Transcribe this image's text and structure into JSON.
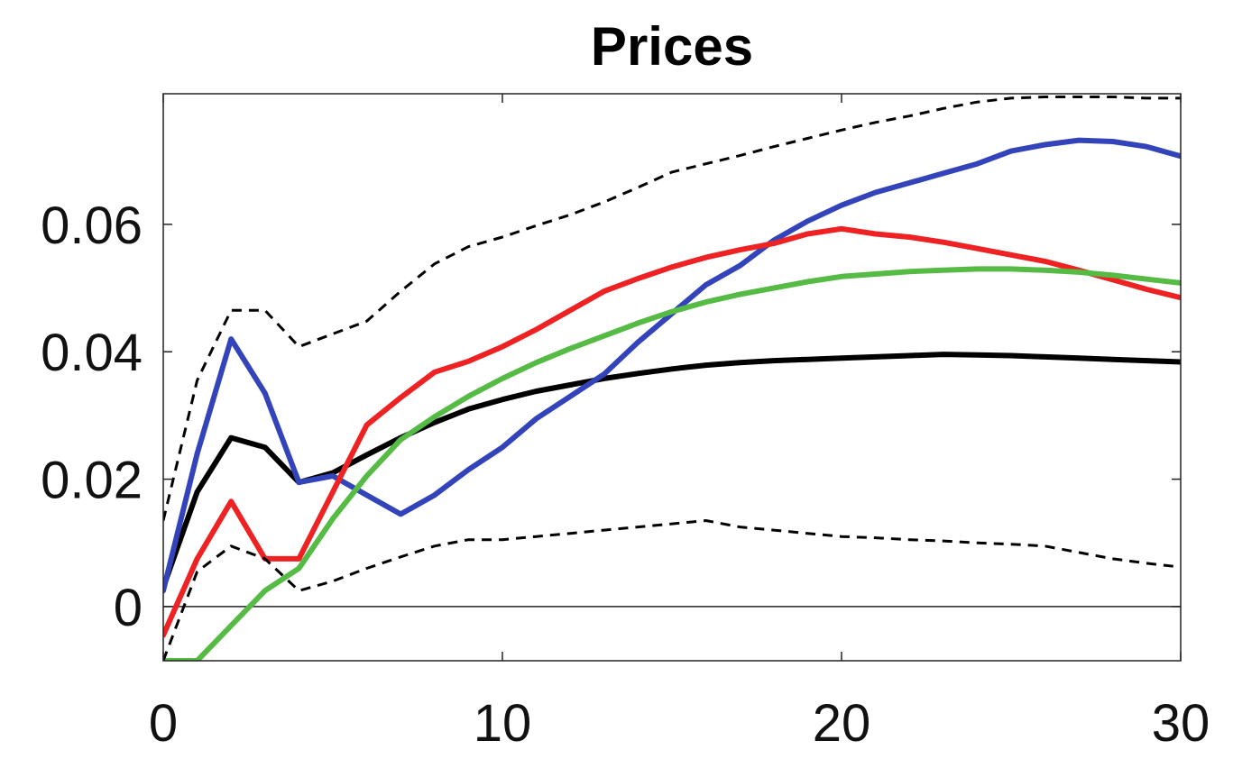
{
  "chart_data": {
    "type": "line",
    "title": "Prices",
    "xlabel": "",
    "ylabel": "",
    "xlim": [
      0,
      30
    ],
    "ylim": [
      -0.0085,
      0.0805
    ],
    "x_ticks": [
      0,
      10,
      20,
      30
    ],
    "x_tick_labels": [
      "0",
      "10",
      "20",
      "30"
    ],
    "y_ticks": [
      0,
      0.02,
      0.04,
      0.06
    ],
    "y_tick_labels": [
      "0",
      "0.02",
      "0.04",
      "0.06"
    ],
    "zero_line": true,
    "grid": false,
    "legend": "none",
    "x": [
      0,
      1,
      2,
      3,
      4,
      5,
      6,
      7,
      8,
      9,
      10,
      11,
      12,
      13,
      14,
      15,
      16,
      17,
      18,
      19,
      20,
      21,
      22,
      23,
      24,
      25,
      26,
      27,
      28,
      29,
      30
    ],
    "series": [
      {
        "color": "#000000",
        "style": "solid",
        "values": [
          0.003,
          0.018,
          0.0265,
          0.025,
          0.0195,
          0.021,
          0.0238,
          0.0265,
          0.0289,
          0.031,
          0.0325,
          0.0338,
          0.0348,
          0.0358,
          0.0366,
          0.0373,
          0.0379,
          0.0383,
          0.0386,
          0.0388,
          0.039,
          0.0392,
          0.0394,
          0.0396,
          0.0395,
          0.0394,
          0.0392,
          0.039,
          0.0388,
          0.0386,
          0.0384
        ]
      },
      {
        "color": "#3344bb",
        "style": "solid",
        "values": [
          0.0025,
          0.024,
          0.042,
          0.0335,
          0.0195,
          0.0205,
          0.0175,
          0.0145,
          0.0175,
          0.0215,
          0.025,
          0.0295,
          0.033,
          0.0365,
          0.0415,
          0.046,
          0.0505,
          0.0535,
          0.0575,
          0.0605,
          0.063,
          0.065,
          0.0665,
          0.068,
          0.0695,
          0.0715,
          0.0725,
          0.0732,
          0.073,
          0.0722,
          0.0707
        ]
      },
      {
        "color": "#ee2222",
        "style": "solid",
        "values": [
          -0.0045,
          0.0075,
          0.0165,
          0.0075,
          0.0075,
          0.018,
          0.0285,
          0.0328,
          0.0368,
          0.0385,
          0.0408,
          0.0435,
          0.0465,
          0.0495,
          0.0515,
          0.0533,
          0.0548,
          0.056,
          0.057,
          0.0585,
          0.0593,
          0.0585,
          0.058,
          0.0572,
          0.0562,
          0.0552,
          0.0542,
          0.0528,
          0.0513,
          0.0498,
          0.0485
        ]
      },
      {
        "color": "#55bb44",
        "style": "solid",
        "values": [
          -0.0085,
          -0.0085,
          -0.003,
          0.0025,
          0.006,
          0.0138,
          0.0205,
          0.0262,
          0.0298,
          0.033,
          0.0358,
          0.0383,
          0.0405,
          0.0425,
          0.0445,
          0.0463,
          0.0478,
          0.049,
          0.05,
          0.051,
          0.0518,
          0.0522,
          0.0526,
          0.0528,
          0.053,
          0.053,
          0.0528,
          0.0525,
          0.052,
          0.0514,
          0.0508
        ]
      },
      {
        "color": "#000000",
        "style": "dashed",
        "values": [
          0.0135,
          0.0355,
          0.0465,
          0.0465,
          0.0408,
          0.0428,
          0.0448,
          0.0495,
          0.0538,
          0.0565,
          0.058,
          0.0598,
          0.0615,
          0.0635,
          0.0658,
          0.0682,
          0.0695,
          0.0708,
          0.0722,
          0.0735,
          0.0748,
          0.076,
          0.077,
          0.0782,
          0.0792,
          0.0798,
          0.08,
          0.08,
          0.08,
          0.0798,
          0.0798
        ]
      },
      {
        "color": "#000000",
        "style": "dashed",
        "values": [
          -0.0085,
          0.0055,
          0.0095,
          0.0075,
          0.0025,
          0.004,
          0.006,
          0.0078,
          0.0095,
          0.0105,
          0.0105,
          0.011,
          0.0115,
          0.012,
          0.0125,
          0.013,
          0.0135,
          0.0125,
          0.012,
          0.0115,
          0.011,
          0.0108,
          0.0105,
          0.0103,
          0.01,
          0.0098,
          0.0095,
          0.0085,
          0.0075,
          0.0068,
          0.0062
        ]
      }
    ]
  }
}
